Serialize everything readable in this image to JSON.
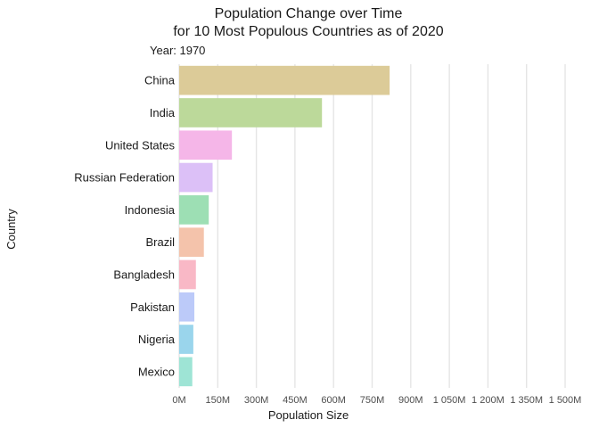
{
  "chart_data": {
    "type": "bar",
    "orientation": "horizontal",
    "title_line1": "Population Change over Time",
    "title_line2": "for 10 Most Populous Countries as of 2020",
    "subtitle": "Year: 1970",
    "xlabel": "Population Size",
    "ylabel": "Country",
    "xlim": [
      0,
      1500
    ],
    "grid": true,
    "legend": "none",
    "x_ticks": [
      {
        "value": 0,
        "label": "0M"
      },
      {
        "value": 150,
        "label": "150M"
      },
      {
        "value": 300,
        "label": "300M"
      },
      {
        "value": 450,
        "label": "450M"
      },
      {
        "value": 600,
        "label": "600M"
      },
      {
        "value": 750,
        "label": "750M"
      },
      {
        "value": 900,
        "label": "900M"
      },
      {
        "value": 1050,
        "label": "1 050M"
      },
      {
        "value": 1200,
        "label": "1 200M"
      },
      {
        "value": 1350,
        "label": "1 350M"
      },
      {
        "value": 1500,
        "label": "1 500M"
      }
    ],
    "categories": [
      "China",
      "India",
      "United States",
      "Russian Federation",
      "Indonesia",
      "Brazil",
      "Bangladesh",
      "Pakistan",
      "Nigeria",
      "Mexico"
    ],
    "values": [
      818,
      555,
      205,
      130,
      115,
      96,
      65,
      59,
      55,
      51
    ],
    "colors": [
      "#dccb98",
      "#bcd99a",
      "#f5b6e8",
      "#dcc0f7",
      "#9ddfb4",
      "#f4c3ab",
      "#f9b8c6",
      "#bccaf9",
      "#9ad5ec",
      "#9ee4d5"
    ]
  }
}
